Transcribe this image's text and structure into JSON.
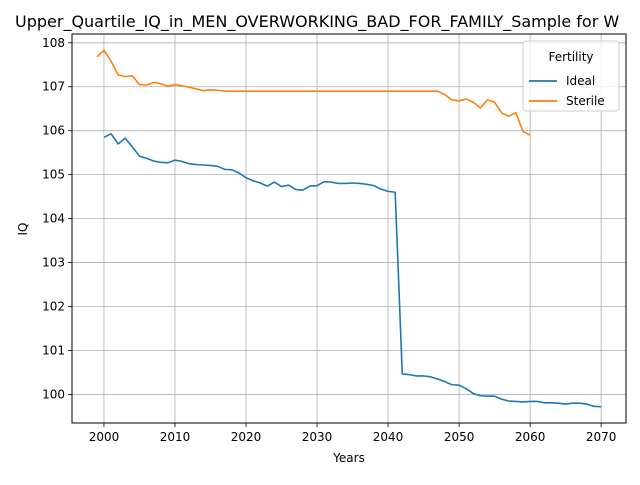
{
  "chart_data": {
    "type": "line",
    "title": "Upper_Quartile_IQ_in_MEN_OVERWORKING_BAD_FOR_FAMILY_Sample for W",
    "xlabel": "Years",
    "ylabel": "IQ",
    "xlim": [
      1995.5,
      2073.5
    ],
    "ylim": [
      99.35,
      108.2
    ],
    "xticks": [
      "2000",
      "2010",
      "2020",
      "2030",
      "2040",
      "2050",
      "2060",
      "2070"
    ],
    "yticks": [
      "100",
      "101",
      "102",
      "103",
      "104",
      "105",
      "106",
      "107",
      "108"
    ],
    "grid": true,
    "legend": {
      "title": "Fertility",
      "placement": "top-right"
    },
    "series": [
      {
        "name": "Ideal",
        "color": "#1f77b4",
        "x": [
          2000,
          2001,
          2002,
          2003,
          2004,
          2005,
          2006,
          2007,
          2008,
          2009,
          2010,
          2011,
          2012,
          2013,
          2014,
          2015,
          2016,
          2017,
          2018,
          2019,
          2020,
          2021,
          2022,
          2023,
          2024,
          2025,
          2026,
          2027,
          2028,
          2029,
          2030,
          2031,
          2032,
          2033,
          2034,
          2035,
          2036,
          2037,
          2038,
          2039,
          2040,
          2041,
          2042,
          2043,
          2044,
          2045,
          2046,
          2047,
          2048,
          2049,
          2050,
          2051,
          2052,
          2053,
          2054,
          2055,
          2056,
          2057,
          2058,
          2059,
          2060,
          2061,
          2062,
          2063,
          2064,
          2065,
          2066,
          2067,
          2068,
          2069,
          2070
        ],
        "values": [
          105.85,
          105.93,
          105.7,
          105.83,
          105.63,
          105.42,
          105.37,
          105.31,
          105.28,
          105.27,
          105.33,
          105.3,
          105.25,
          105.23,
          105.22,
          105.21,
          105.19,
          105.12,
          105.11,
          105.04,
          104.93,
          104.86,
          104.81,
          104.74,
          104.83,
          104.73,
          104.76,
          104.66,
          104.65,
          104.74,
          104.75,
          104.84,
          104.83,
          104.8,
          104.8,
          104.81,
          104.8,
          104.78,
          104.75,
          104.67,
          104.62,
          104.6,
          100.47,
          100.45,
          100.42,
          100.42,
          100.4,
          100.35,
          100.29,
          100.22,
          100.21,
          100.13,
          100.02,
          99.97,
          99.96,
          99.96,
          99.89,
          99.85,
          99.84,
          99.83,
          99.84,
          99.84,
          99.81,
          99.81,
          99.8,
          99.78,
          99.8,
          99.8,
          99.78,
          99.73,
          99.72
        ]
      },
      {
        "name": "Sterile",
        "color": "#ff7f0e",
        "x": [
          1999,
          2000,
          2001,
          2002,
          2003,
          2004,
          2005,
          2006,
          2007,
          2008,
          2009,
          2010,
          2011,
          2012,
          2013,
          2014,
          2015,
          2016,
          2017,
          2018,
          2019,
          2020,
          2021,
          2022,
          2023,
          2024,
          2025,
          2026,
          2027,
          2028,
          2029,
          2030,
          2031,
          2032,
          2033,
          2034,
          2035,
          2036,
          2037,
          2038,
          2039,
          2040,
          2041,
          2042,
          2043,
          2044,
          2045,
          2046,
          2047,
          2048,
          2049,
          2050,
          2051,
          2052,
          2053,
          2054,
          2055,
          2056,
          2057,
          2058,
          2059,
          2060
        ],
        "values": [
          107.68,
          107.83,
          107.58,
          107.27,
          107.23,
          107.25,
          107.05,
          107.04,
          107.1,
          107.07,
          107.01,
          107.05,
          107.02,
          106.99,
          106.95,
          106.91,
          106.93,
          106.92,
          106.9,
          106.9,
          106.9,
          106.9,
          106.9,
          106.9,
          106.9,
          106.9,
          106.9,
          106.9,
          106.9,
          106.9,
          106.9,
          106.9,
          106.9,
          106.9,
          106.9,
          106.9,
          106.9,
          106.9,
          106.9,
          106.9,
          106.9,
          106.9,
          106.9,
          106.9,
          106.9,
          106.9,
          106.9,
          106.9,
          106.9,
          106.82,
          106.7,
          106.68,
          106.72,
          106.65,
          106.52,
          106.7,
          106.65,
          106.4,
          106.33,
          106.41,
          105.98,
          105.9
        ]
      }
    ]
  }
}
